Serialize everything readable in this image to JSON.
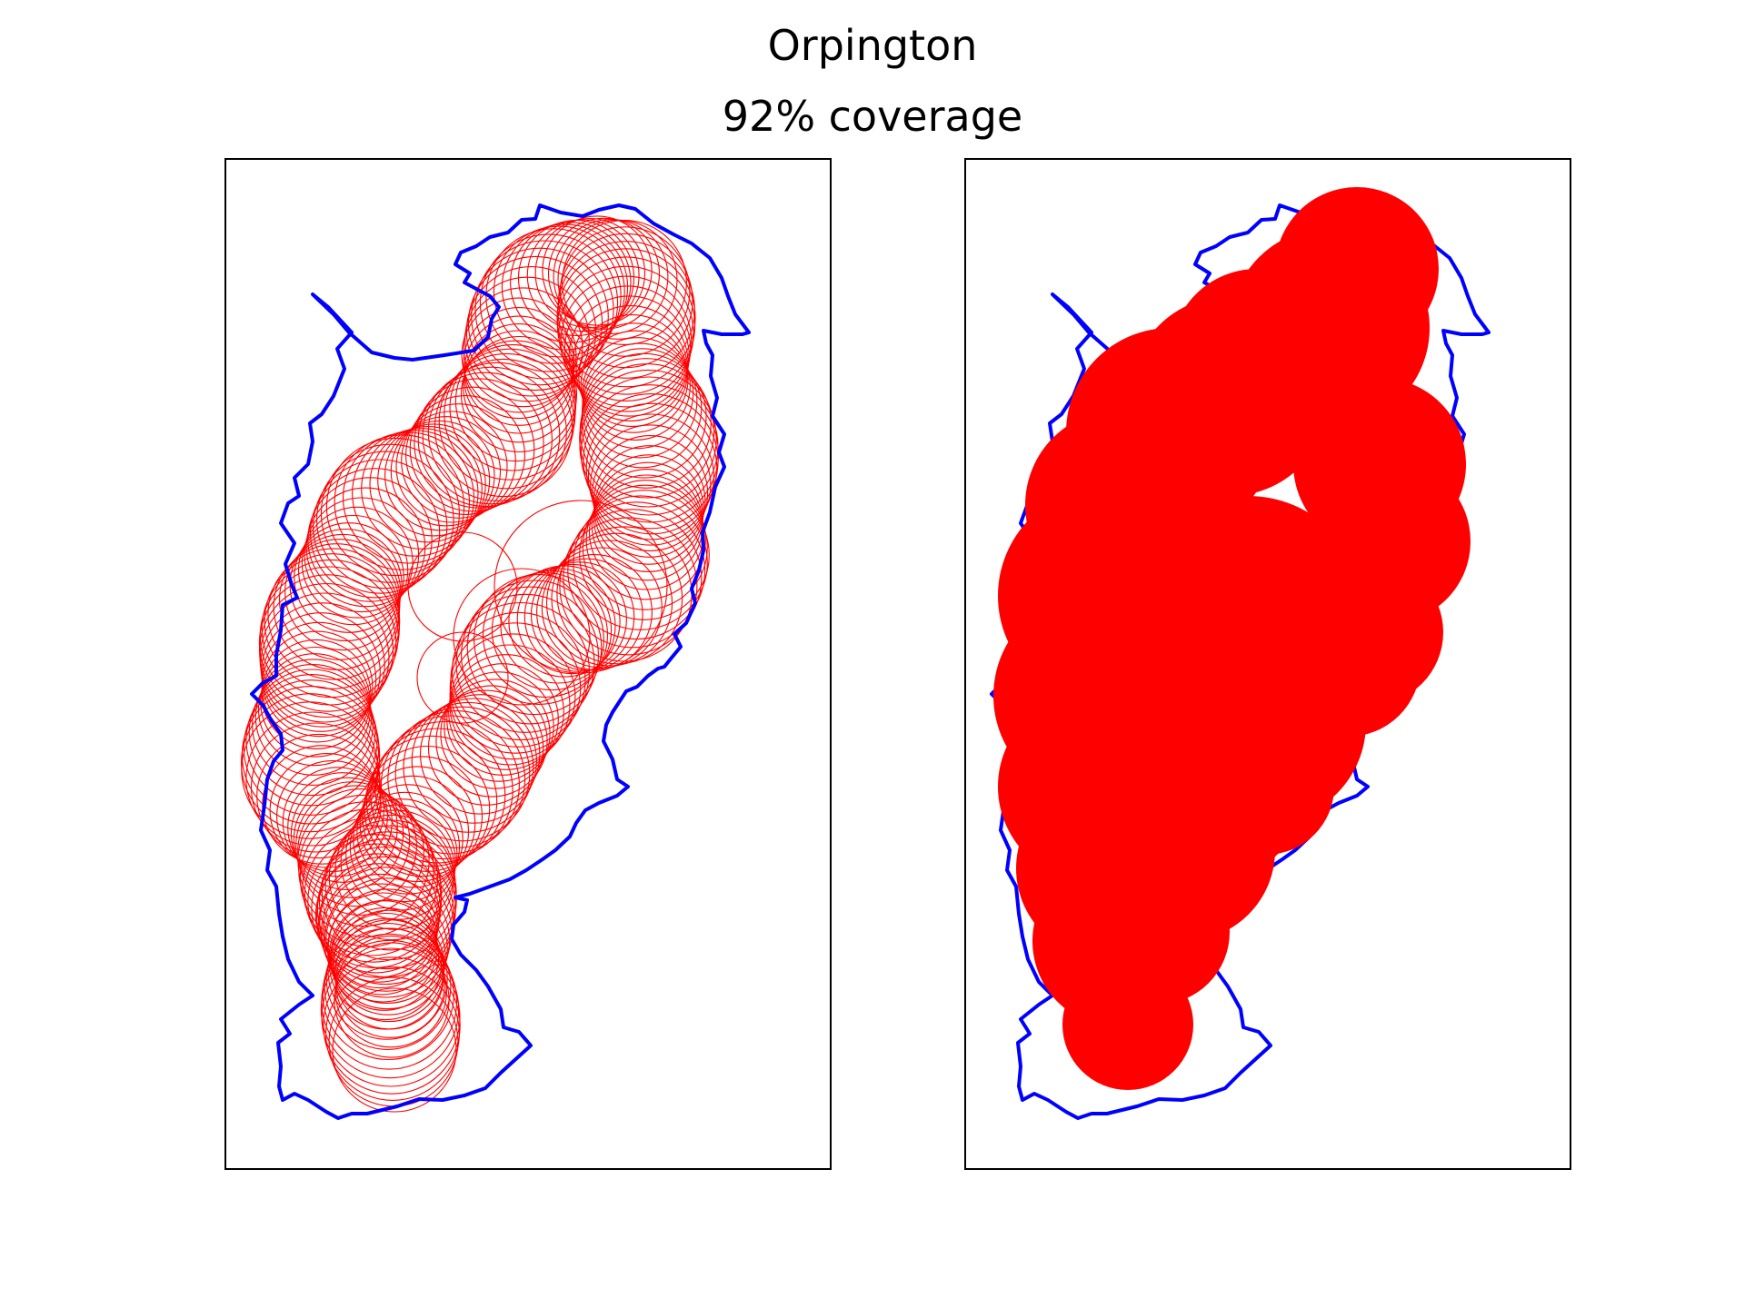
{
  "figure": {
    "title": "Orpington",
    "subtitle": "92% coverage"
  },
  "colors": {
    "boundary": "#0000ff",
    "circles": "#ff0000",
    "frame": "#000000",
    "background": "#ffffff"
  },
  "panels": [
    {
      "name": "outline-circles",
      "circle_style": "outline"
    },
    {
      "name": "filled-circles",
      "circle_style": "filled"
    }
  ]
}
